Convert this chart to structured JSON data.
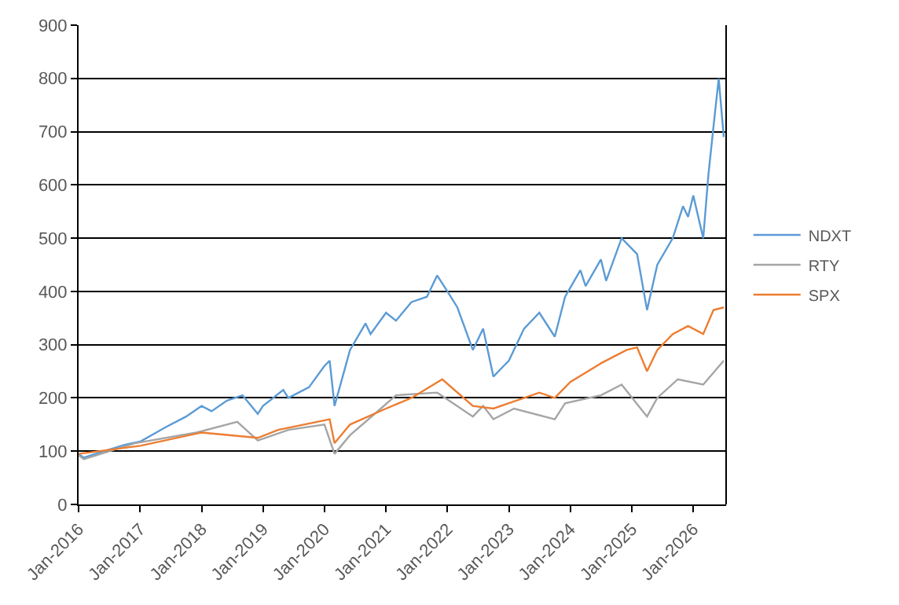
{
  "chart_data": {
    "type": "line",
    "xlim": [
      "2016-01-01",
      "2026-07-15"
    ],
    "xticks": [
      {
        "value": "2016-01-01",
        "label": "Jan-2016"
      },
      {
        "value": "2017-01-01",
        "label": "Jan-2017"
      },
      {
        "value": "2018-01-01",
        "label": "Jan-2018"
      },
      {
        "value": "2019-01-01",
        "label": "Jan-2019"
      },
      {
        "value": "2020-01-01",
        "label": "Jan-2020"
      },
      {
        "value": "2021-01-01",
        "label": "Jan-2021"
      },
      {
        "value": "2022-01-01",
        "label": "Jan-2022"
      },
      {
        "value": "2023-01-01",
        "label": "Jan-2023"
      },
      {
        "value": "2024-01-01",
        "label": "Jan-2024"
      },
      {
        "value": "2025-01-01",
        "label": "Jan-2025"
      },
      {
        "value": "2026-01-01",
        "label": "Jan-2026"
      }
    ],
    "ylim": [
      0,
      900
    ],
    "yticks": [
      0,
      100,
      200,
      300,
      400,
      500,
      600,
      700,
      800,
      900
    ],
    "grid": "y",
    "legend": "right",
    "marker": "none",
    "line_style": "solid",
    "series": [
      {
        "name": "NDXT",
        "color": "#5b9bd5",
        "x": [
          "2016-01",
          "2016-02",
          "2016-06",
          "2016-10",
          "2017-01",
          "2017-06",
          "2017-10",
          "2018-01",
          "2018-03",
          "2018-06",
          "2018-09",
          "2018-12",
          "2019-01",
          "2019-05",
          "2019-06",
          "2019-10",
          "2020-01",
          "2020-02",
          "2020-03",
          "2020-06",
          "2020-09",
          "2020-10",
          "2021-01",
          "2021-03",
          "2021-06",
          "2021-09",
          "2021-11",
          "2022-01",
          "2022-03",
          "2022-06",
          "2022-08",
          "2022-10",
          "2022-12",
          "2023-01",
          "2023-04",
          "2023-07",
          "2023-10",
          "2023-12",
          "2024-03",
          "2024-04",
          "2024-07",
          "2024-08",
          "2024-11",
          "2025-02",
          "2025-04",
          "2025-06",
          "2025-09",
          "2025-11",
          "2025-12",
          "2026-01",
          "2026-03",
          "2026-04",
          "2026-05",
          "2026-06",
          "2026-07"
        ],
        "values": [
          95,
          88,
          100,
          112,
          118,
          145,
          165,
          185,
          175,
          195,
          205,
          170,
          185,
          215,
          200,
          220,
          260,
          270,
          185,
          290,
          340,
          320,
          360,
          345,
          380,
          390,
          430,
          400,
          370,
          290,
          330,
          240,
          260,
          270,
          330,
          360,
          315,
          390,
          440,
          410,
          460,
          420,
          500,
          470,
          365,
          450,
          500,
          560,
          540,
          580,
          500,
          620,
          710,
          800,
          690
        ]
      },
      {
        "name": "RTY",
        "color": "#a5a5a5",
        "x": [
          "2016-01",
          "2016-02",
          "2016-12",
          "2017-12",
          "2018-08",
          "2018-12",
          "2019-06",
          "2020-01",
          "2020-03",
          "2020-06",
          "2020-12",
          "2021-03",
          "2021-11",
          "2022-06",
          "2022-08",
          "2022-10",
          "2023-02",
          "2023-10",
          "2023-12",
          "2024-07",
          "2024-11",
          "2025-04",
          "2025-06",
          "2025-10",
          "2026-03",
          "2026-07"
        ],
        "values": [
          92,
          85,
          115,
          135,
          155,
          120,
          140,
          150,
          95,
          130,
          180,
          205,
          210,
          165,
          185,
          160,
          180,
          160,
          190,
          205,
          225,
          165,
          200,
          235,
          225,
          270
        ]
      },
      {
        "name": "SPX",
        "color": "#ed7d31",
        "x": [
          "2016-01",
          "2017-01",
          "2018-01",
          "2018-12",
          "2019-04",
          "2020-02",
          "2020-03",
          "2020-06",
          "2021-01",
          "2021-06",
          "2021-12",
          "2022-06",
          "2022-10",
          "2023-01",
          "2023-07",
          "2023-10",
          "2024-01",
          "2024-07",
          "2024-12",
          "2025-02",
          "2025-04",
          "2025-06",
          "2025-09",
          "2025-12",
          "2026-03",
          "2026-05",
          "2026-07"
        ],
        "values": [
          95,
          110,
          135,
          125,
          140,
          160,
          115,
          150,
          180,
          200,
          235,
          185,
          180,
          190,
          210,
          200,
          230,
          265,
          290,
          295,
          250,
          290,
          320,
          335,
          320,
          365,
          370
        ]
      }
    ]
  }
}
